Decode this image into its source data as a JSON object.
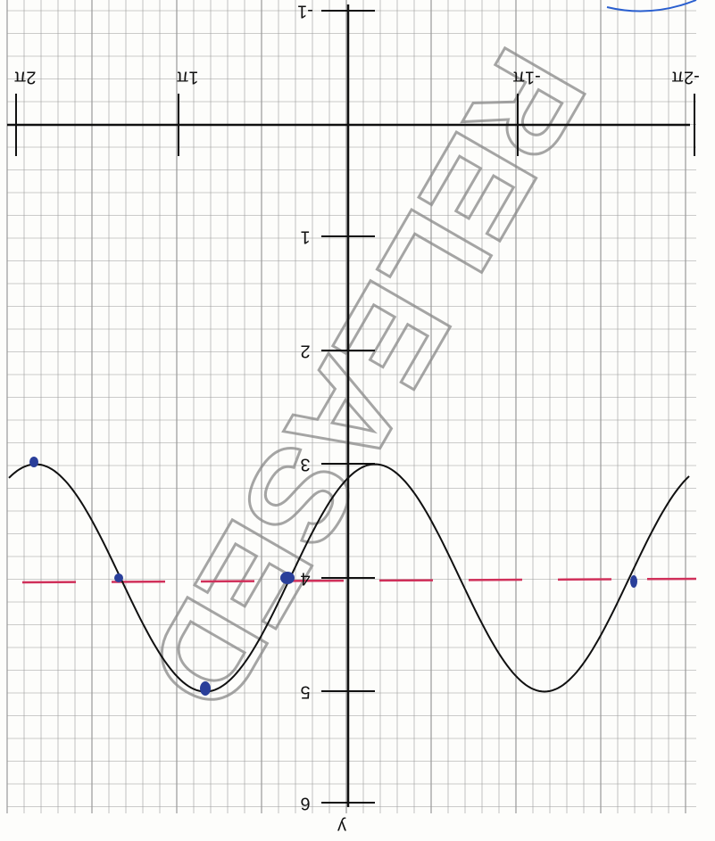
{
  "axis": {
    "y_label": "y",
    "y_ticks": [
      "-1",
      "1",
      "2",
      "3",
      "4",
      "5",
      "6"
    ],
    "x_ticks": [
      "2π",
      "1π",
      "-1π",
      "-2π"
    ]
  },
  "watermark": "RELEASED"
}
